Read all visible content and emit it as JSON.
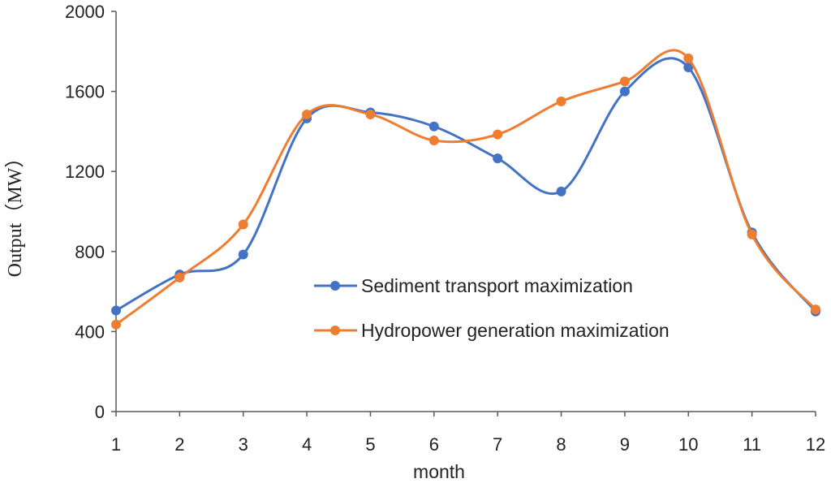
{
  "chart_data": {
    "type": "line",
    "title": "",
    "xlabel": "month",
    "ylabel": "Output（MW）",
    "categories": [
      "1",
      "2",
      "3",
      "4",
      "5",
      "6",
      "7",
      "8",
      "9",
      "10",
      "11",
      "12"
    ],
    "ylim": [
      0,
      2000
    ],
    "yticks": [
      "0",
      "400",
      "800",
      "1200",
      "1600",
      "2000"
    ],
    "grid": false,
    "smooth": true,
    "legend_position": "center-right",
    "series": [
      {
        "name": "Sediment transport maximization",
        "color": "#4472C4",
        "values": [
          505,
          685,
          785,
          1465,
          1495,
          1425,
          1265,
          1100,
          1600,
          1720,
          895,
          500
        ]
      },
      {
        "name": "Hydropower generation maximization",
        "color": "#ED7D31",
        "values": [
          435,
          670,
          935,
          1485,
          1485,
          1355,
          1385,
          1550,
          1650,
          1765,
          885,
          510
        ]
      }
    ]
  }
}
